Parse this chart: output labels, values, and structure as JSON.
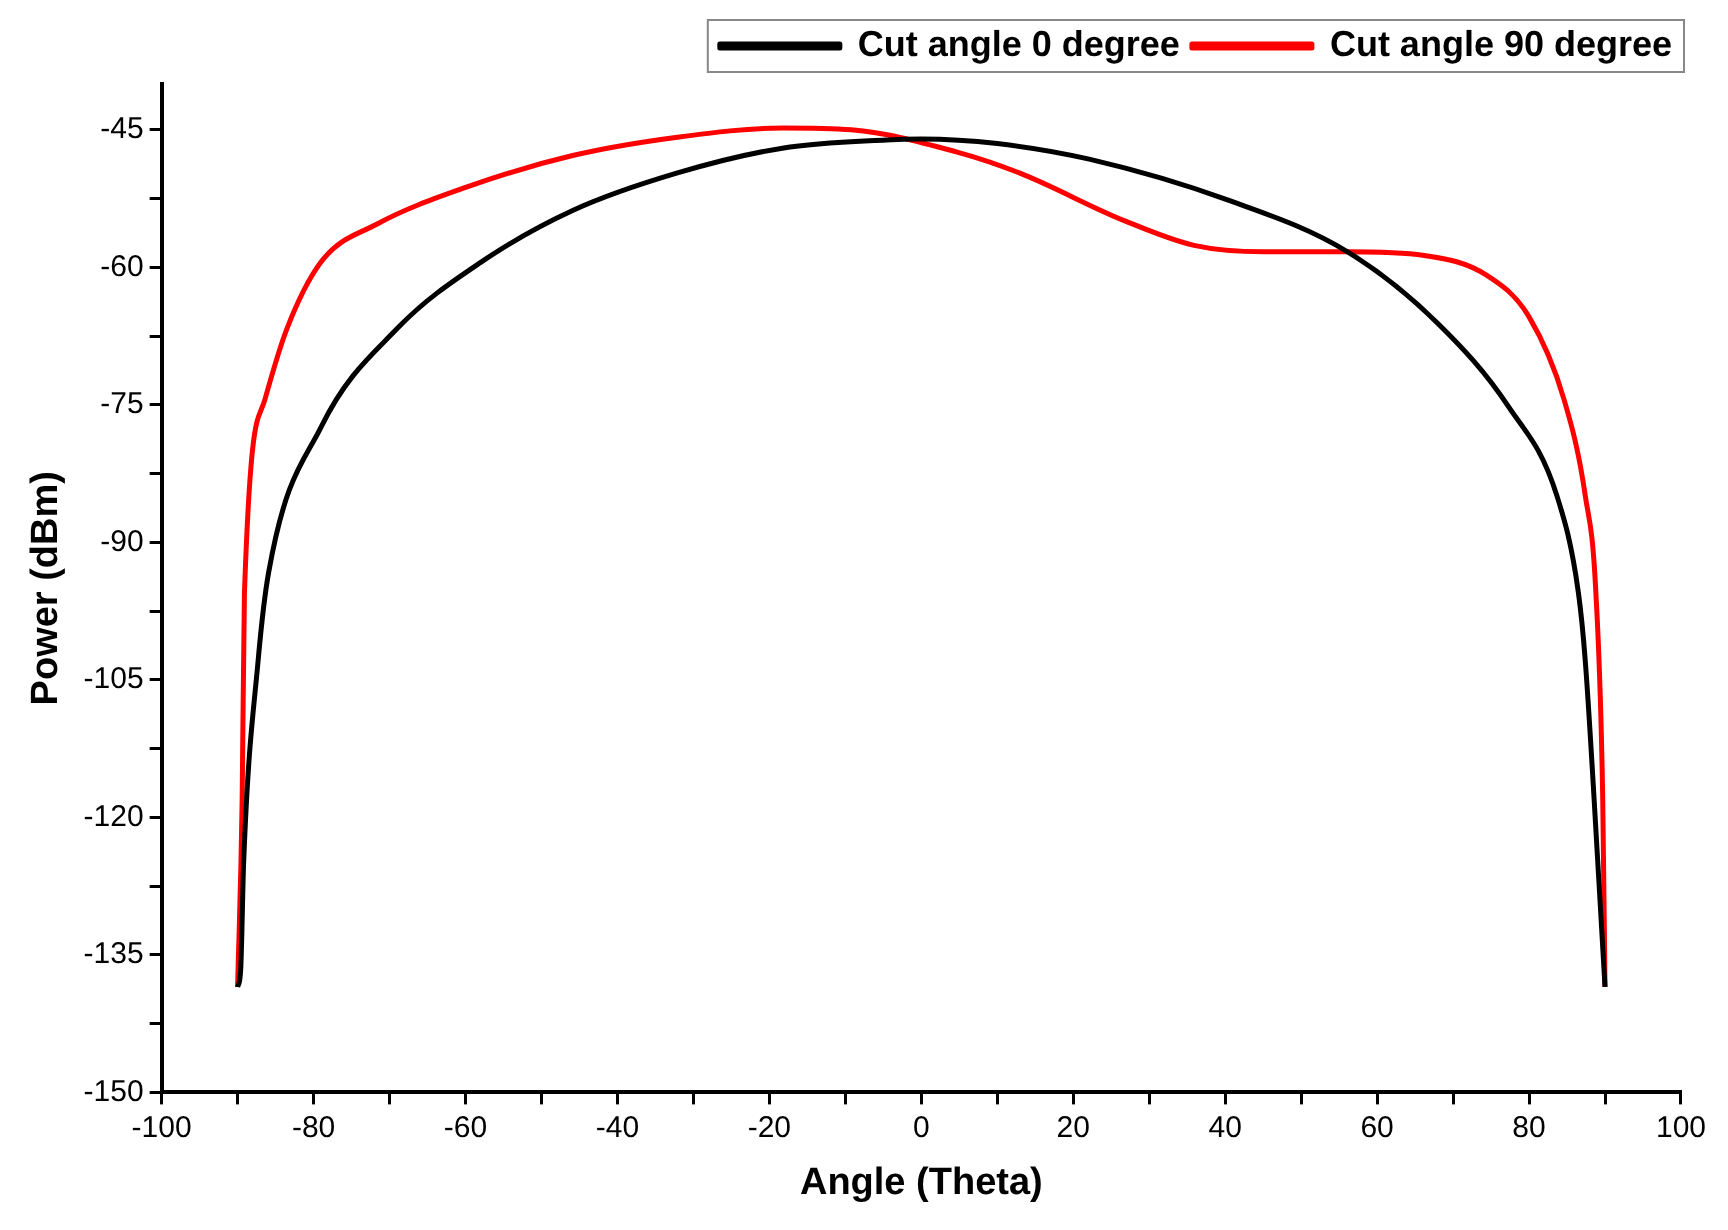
{
  "chart_data": {
    "type": "line",
    "xlabel": "Angle (Theta)",
    "ylabel": "Power (dBm)",
    "xlim": [
      -100,
      100
    ],
    "ylim": [
      -150,
      -40
    ],
    "xticks": [
      -100,
      {
        "value": -90,
        "label": null
      },
      -80,
      {
        "value": -70,
        "label": null
      },
      -60,
      {
        "value": -50,
        "label": null
      },
      -40,
      {
        "value": -30,
        "label": null
      },
      -20,
      {
        "value": -10,
        "label": null
      },
      0,
      {
        "value": 10,
        "label": null
      },
      20,
      {
        "value": 30,
        "label": null
      },
      40,
      {
        "value": 50,
        "label": null
      },
      60,
      {
        "value": 70,
        "label": null
      },
      80,
      {
        "value": 90,
        "label": null
      },
      100
    ],
    "yticks": [
      -150,
      {
        "value": -142.5,
        "label": null
      },
      -135,
      {
        "value": -127.5,
        "label": null
      },
      -120,
      {
        "value": -112.5,
        "label": null
      },
      -105,
      {
        "value": -97.5,
        "label": null
      },
      -90,
      {
        "value": -82.5,
        "label": null
      },
      -75,
      {
        "value": -67.5,
        "label": null
      },
      -60,
      {
        "value": -52.5,
        "label": null
      },
      -45
    ],
    "grid": false,
    "legend": "top right",
    "marker": "none",
    "line_style": "solid",
    "series": [
      {
        "name": "Cut angle 0 degree",
        "color": "#000000",
        "x": [
          -90,
          -89.6,
          -89.2,
          -87.3,
          -85.9,
          -79,
          -68.9,
          -57.9,
          -45.9,
          -32.1,
          -18.3,
          -4.6,
          0,
          10,
          22.1,
          40.5,
          56.1,
          68.1,
          77.3,
          83.7,
          86.5,
          87.4,
          89.2,
          90
        ],
        "values": [
          -138.5,
          -136.7,
          -124.8,
          -102.9,
          -93.2,
          -77.4,
          -66.6,
          -59.4,
          -53.8,
          -49.7,
          -47,
          -46.1,
          -46,
          -46.5,
          -48.2,
          -52.7,
          -58.3,
          -66.2,
          -75.2,
          -85,
          -95.5,
          -102.9,
          -127,
          -138.5
        ]
      },
      {
        "name": "Cut angle 90 degree",
        "color": "#ff0000",
        "x": [
          -90,
          -89.4,
          -89.1,
          -86.4,
          -83.6,
          -79,
          -71.7,
          -59.7,
          -45.9,
          -32.1,
          -18.3,
          -9.2,
          4.6,
          12.9,
          26.7,
          35.9,
          45.1,
          56.1,
          66.2,
          74.5,
          80,
          84.6,
          87.4,
          88.8,
          89.7,
          90
        ],
        "values": [
          -138.5,
          -118,
          -95.5,
          -74.4,
          -66.9,
          -59.4,
          -55.3,
          -51.2,
          -47.8,
          -45.8,
          -44.8,
          -45,
          -47.4,
          -49.7,
          -54.9,
          -57.6,
          -58.3,
          -58.3,
          -58.7,
          -60.9,
          -65.4,
          -74.4,
          -84.9,
          -95.5,
          -118,
          -138.5
        ]
      }
    ]
  }
}
